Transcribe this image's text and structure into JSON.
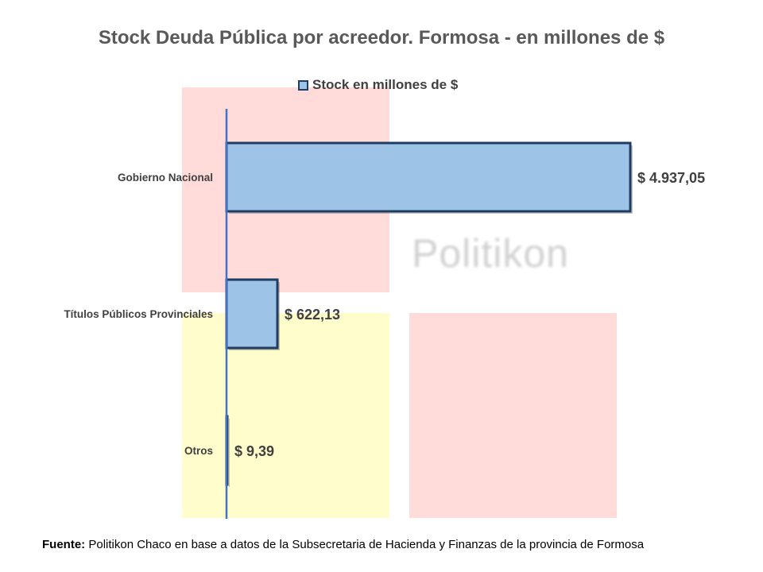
{
  "chart_data": {
    "type": "bar",
    "orientation": "horizontal",
    "title": "Stock Deuda Pública por acreedor. Formosa - en millones de $",
    "categories": [
      "Gobierno Nacional",
      "Títulos Públicos Provinciales",
      "Otros"
    ],
    "series": [
      {
        "name": "Stock en millones de $",
        "values": [
          4937.05,
          622.13,
          9.39
        ],
        "labels": [
          "$ 4.937,05",
          "$ 622,13",
          "$ 9,39"
        ]
      }
    ],
    "legend_position": "top",
    "grid": false,
    "xlim": [
      0,
      5000
    ],
    "colors": {
      "bar_fill": "#9dc3e6",
      "bar_border": "#1f3c62",
      "axis": "#4472c4"
    }
  },
  "watermark": {
    "text": "Politikon"
  },
  "footer": {
    "label": "Fuente:",
    "text": "Politikon Chaco en base a datos de la Subsecretaria de Hacienda y Finanzas de la provincia de Formosa"
  }
}
